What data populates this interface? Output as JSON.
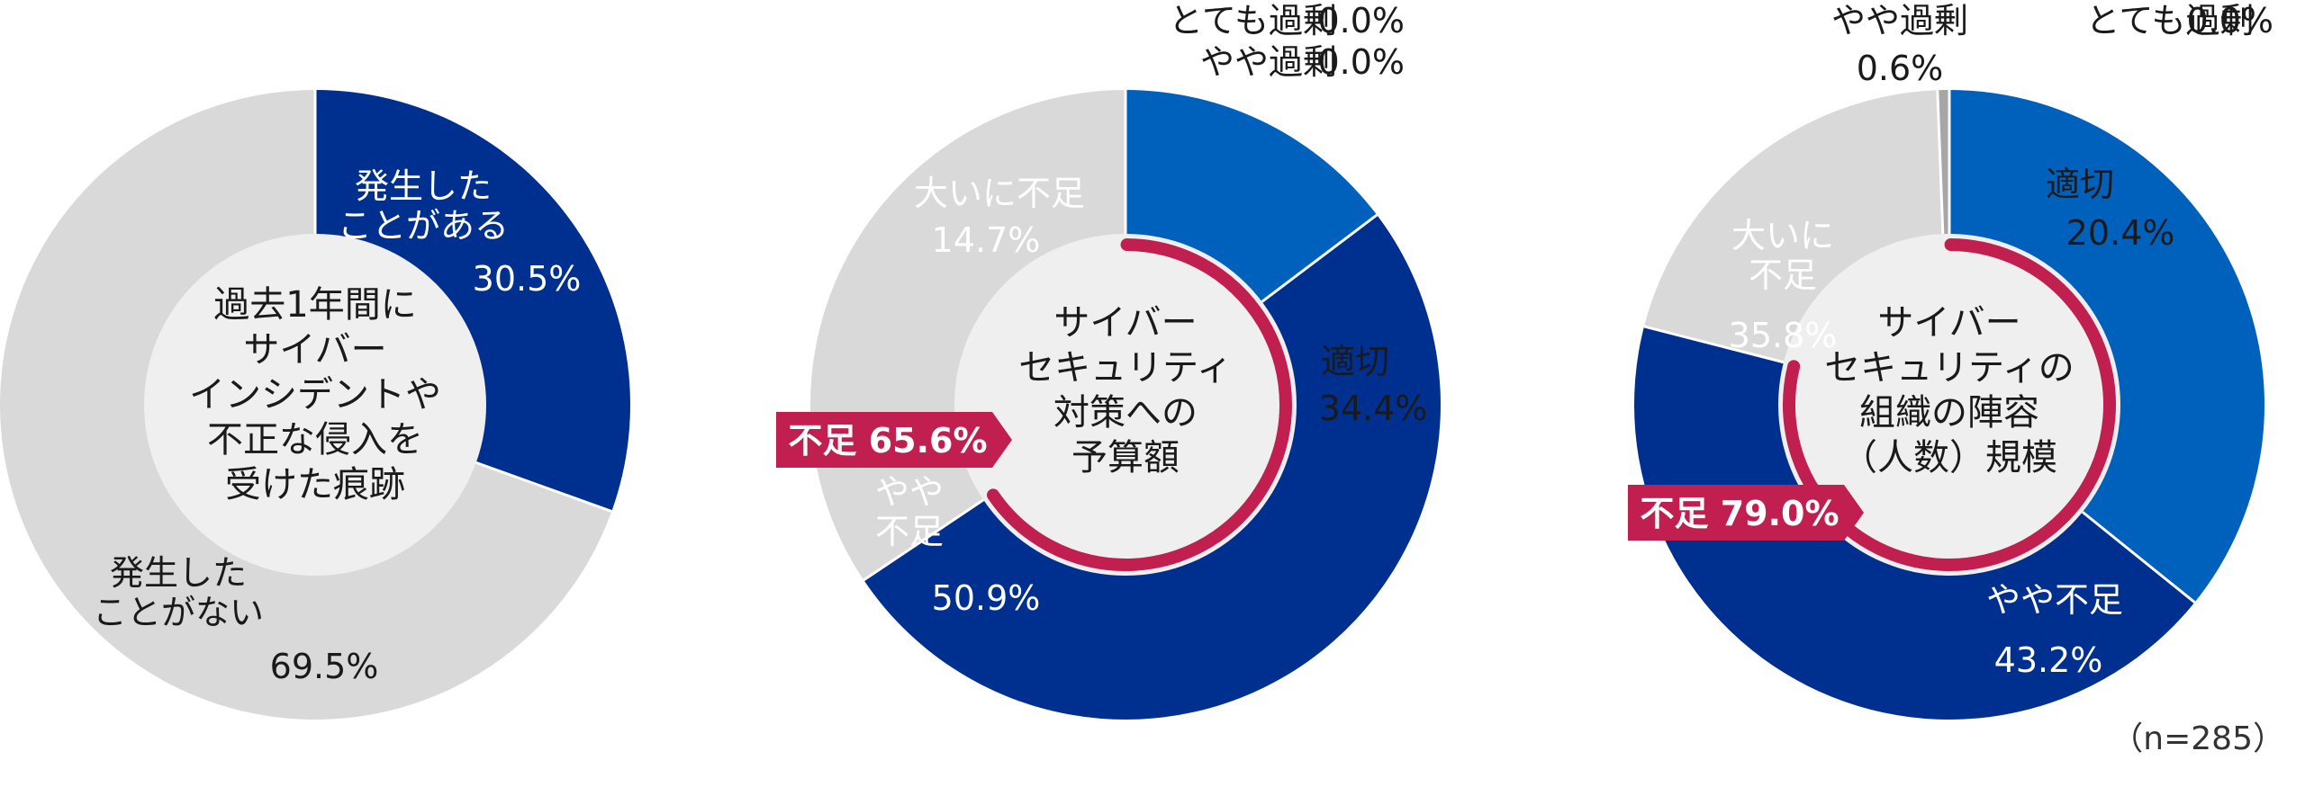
{
  "colors": {
    "dark_blue": "#00308f",
    "mid_blue": "#0061bd",
    "grey": "#d9d9d9",
    "center_grey": "#efefef",
    "accent_red": "#c01f4f",
    "text_dark": "#1a1a1a",
    "text_light": "#ffffff",
    "dark_grey": "#a6a6a6"
  },
  "note": "（n=285）",
  "chart_data": [
    {
      "type": "pie",
      "center_label": [
        "過去1年間に",
        "サイバー",
        "インシデントや",
        "不正な侵入を",
        "受けた痕跡"
      ],
      "categories": [
        "発生したことがある",
        "発生したことがない"
      ],
      "values": [
        30.5,
        69.5
      ],
      "colors": [
        "#00308f",
        "#d9d9d9"
      ],
      "labels": [
        [
          "発生した",
          "ことがある"
        ],
        [
          "発生した",
          "ことがない"
        ]
      ],
      "value_labels": [
        "30.5%",
        "69.5%"
      ]
    },
    {
      "type": "pie",
      "center_label": [
        "サイバー",
        "セキュリティ",
        "対策への",
        "予算額"
      ],
      "categories": [
        "大いに不足",
        "やや不足",
        "適切",
        "やや過剰",
        "とても過剰"
      ],
      "values": [
        14.7,
        50.9,
        34.4,
        0.0,
        0.0
      ],
      "colors": [
        "#0061bd",
        "#00308f",
        "#d9d9d9",
        "#a6a6a6",
        "#808080"
      ],
      "labels": [
        [
          "大いに不足"
        ],
        [
          "やや",
          "不足"
        ],
        [
          "適切"
        ],
        [
          "やや過剰"
        ],
        [
          "とても過剰"
        ]
      ],
      "value_labels": [
        "14.7%",
        "50.9%",
        "34.4%",
        "0.0%",
        "0.0%"
      ],
      "callout": "不足 65.6%",
      "callout_value": 65.6
    },
    {
      "type": "pie",
      "center_label": [
        "サイバー",
        "セキュリティの",
        "組織の陣容",
        "（人数）規模"
      ],
      "categories": [
        "大いに不足",
        "やや不足",
        "適切",
        "やや過剰",
        "とても過剰"
      ],
      "values": [
        35.8,
        43.2,
        20.4,
        0.6,
        0.0
      ],
      "colors": [
        "#0061bd",
        "#00308f",
        "#d9d9d9",
        "#a6a6a6",
        "#808080"
      ],
      "labels": [
        [
          "大いに",
          "不足"
        ],
        [
          "やや不足"
        ],
        [
          "適切"
        ],
        [
          "やや過剰"
        ],
        [
          "とても過剰"
        ]
      ],
      "value_labels": [
        "35.8%",
        "43.2%",
        "20.4%",
        "0.6%",
        "0.0%"
      ],
      "callout": "不足 79.0%",
      "callout_value": 79.0
    }
  ]
}
